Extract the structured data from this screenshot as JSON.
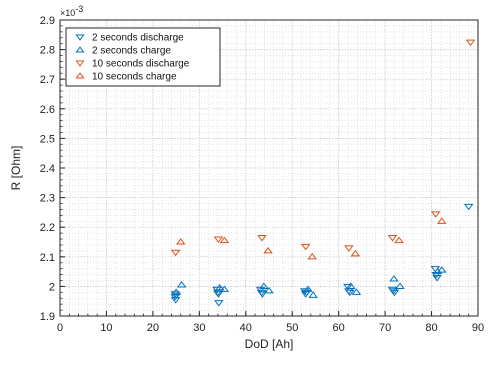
{
  "chart_data": {
    "type": "scatter",
    "title": "",
    "xlabel": "DoD [Ah]",
    "ylabel": "R [Ohm]",
    "y_exponent": "× 10^-3",
    "y_exponent_base": "×10",
    "y_exponent_power": "-3",
    "xlim": [
      0,
      90
    ],
    "ylim": [
      1.9,
      2.9
    ],
    "xticks": [
      0,
      10,
      20,
      30,
      40,
      50,
      60,
      70,
      80,
      90
    ],
    "yticks": [
      1.9,
      2.0,
      2.1,
      2.2,
      2.3,
      2.4,
      2.5,
      2.6,
      2.7,
      2.8,
      2.9
    ],
    "ytick_labels": [
      "1.9",
      "2",
      "2.1",
      "2.2",
      "2.3",
      "2.4",
      "2.5",
      "2.6",
      "2.7",
      "2.8",
      "2.9"
    ],
    "grid": true,
    "minor_grid": true,
    "legend_position": "top-left",
    "series": [
      {
        "name": "2 seconds discharge",
        "marker": "triangle-down",
        "color": "#0072bd",
        "points": [
          [
            24.8,
            1.975
          ],
          [
            24.8,
            1.965
          ],
          [
            24.9,
            1.955
          ],
          [
            25.0,
            1.97
          ],
          [
            33.8,
            1.99
          ],
          [
            34.0,
            1.98
          ],
          [
            34.1,
            1.975
          ],
          [
            34.2,
            1.945
          ],
          [
            43.2,
            1.99
          ],
          [
            43.4,
            1.98
          ],
          [
            43.6,
            1.975
          ],
          [
            52.7,
            1.985
          ],
          [
            52.9,
            1.975
          ],
          [
            53.1,
            1.98
          ],
          [
            62.0,
            2.0
          ],
          [
            62.2,
            1.985
          ],
          [
            62.4,
            1.98
          ],
          [
            71.6,
            1.99
          ],
          [
            71.8,
            1.985
          ],
          [
            72.0,
            1.98
          ],
          [
            80.8,
            2.06
          ],
          [
            81.0,
            2.04
          ],
          [
            81.2,
            2.03
          ],
          [
            88.0,
            2.27
          ]
        ]
      },
      {
        "name": "2 seconds charge",
        "marker": "triangle-up",
        "color": "#0072bd",
        "points": [
          [
            25.0,
            1.98
          ],
          [
            26.2,
            2.005
          ],
          [
            34.4,
            1.995
          ],
          [
            35.4,
            1.99
          ],
          [
            43.9,
            2.0
          ],
          [
            45.0,
            1.985
          ],
          [
            53.4,
            1.99
          ],
          [
            54.5,
            1.97
          ],
          [
            62.6,
            2.0
          ],
          [
            63.8,
            1.98
          ],
          [
            71.9,
            2.025
          ],
          [
            73.2,
            2.0
          ],
          [
            81.3,
            2.05
          ],
          [
            82.2,
            2.055
          ]
        ]
      },
      {
        "name": "10 seconds discharge",
        "marker": "triangle-down",
        "color": "#d95319",
        "points": [
          [
            24.9,
            2.115
          ],
          [
            34.1,
            2.16
          ],
          [
            43.5,
            2.165
          ],
          [
            52.9,
            2.135
          ],
          [
            62.2,
            2.13
          ],
          [
            71.6,
            2.165
          ],
          [
            80.9,
            2.245
          ],
          [
            88.4,
            2.825
          ]
        ]
      },
      {
        "name": "10 seconds charge",
        "marker": "triangle-up",
        "color": "#d95319",
        "points": [
          [
            26.0,
            2.15
          ],
          [
            35.4,
            2.155
          ],
          [
            44.8,
            2.12
          ],
          [
            54.3,
            2.1
          ],
          [
            63.6,
            2.11
          ],
          [
            73.0,
            2.155
          ],
          [
            82.2,
            2.22
          ]
        ]
      }
    ]
  }
}
